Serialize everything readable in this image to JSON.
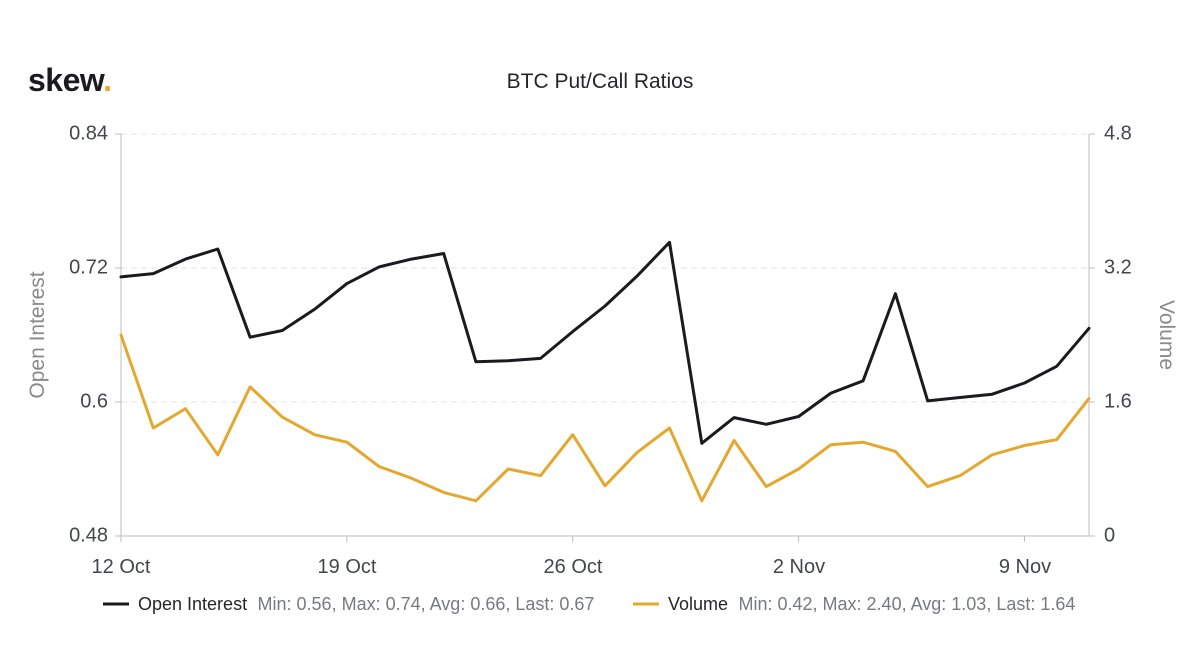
{
  "logo": {
    "text": "skew",
    "dot": "."
  },
  "chart_data": {
    "type": "line",
    "title": "BTC Put/Call Ratios",
    "x_tick_labels": [
      "12 Oct",
      "19 Oct",
      "26 Oct",
      "2 Nov",
      "9 Nov"
    ],
    "x_tick_dates": [
      "2020-10-12",
      "2020-10-19",
      "2020-10-26",
      "2020-11-02",
      "2020-11-09"
    ],
    "x": [
      "2020-10-12",
      "2020-10-13",
      "2020-10-14",
      "2020-10-15",
      "2020-10-16",
      "2020-10-17",
      "2020-10-18",
      "2020-10-19",
      "2020-10-20",
      "2020-10-21",
      "2020-10-22",
      "2020-10-23",
      "2020-10-24",
      "2020-10-25",
      "2020-10-26",
      "2020-10-27",
      "2020-10-28",
      "2020-10-29",
      "2020-10-30",
      "2020-10-31",
      "2020-11-01",
      "2020-11-02",
      "2020-11-03",
      "2020-11-04",
      "2020-11-05",
      "2020-11-06",
      "2020-11-07",
      "2020-11-08",
      "2020-11-09",
      "2020-11-10",
      "2020-11-11"
    ],
    "left_axis": {
      "label": "Open Interest",
      "ticks": [
        "0.48",
        "0.6",
        "0.72",
        "0.84"
      ],
      "min": 0.48,
      "max": 0.84
    },
    "right_axis": {
      "label": "Volume",
      "ticks": [
        "0",
        "1.6",
        "3.2",
        "4.8"
      ],
      "min": 0,
      "max": 4.8
    },
    "grid": true,
    "legend_position": "bottom",
    "series": [
      {
        "name": "Open Interest",
        "axis": "left",
        "color": "#1b1b1f",
        "stats": "Min: 0.56, Max: 0.74, Avg: 0.66, Last: 0.67",
        "values": [
          0.712,
          0.715,
          0.728,
          0.737,
          0.658,
          0.664,
          0.683,
          0.706,
          0.721,
          0.728,
          0.733,
          0.636,
          0.637,
          0.639,
          0.663,
          0.686,
          0.713,
          0.743,
          0.563,
          0.586,
          0.58,
          0.587,
          0.608,
          0.619,
          0.697,
          0.601,
          0.604,
          0.607,
          0.617,
          0.632,
          0.666
        ]
      },
      {
        "name": "Volume",
        "axis": "right",
        "color": "#e5a82e",
        "stats": "Min: 0.42, Max: 2.40, Avg: 1.03, Last: 1.64",
        "values": [
          2.4,
          1.29,
          1.52,
          0.97,
          1.78,
          1.42,
          1.21,
          1.12,
          0.83,
          0.69,
          0.52,
          0.42,
          0.8,
          0.72,
          1.21,
          0.6,
          1.0,
          1.29,
          0.42,
          1.14,
          0.59,
          0.8,
          1.09,
          1.12,
          1.01,
          0.59,
          0.72,
          0.97,
          1.08,
          1.15,
          1.64
        ]
      }
    ]
  }
}
